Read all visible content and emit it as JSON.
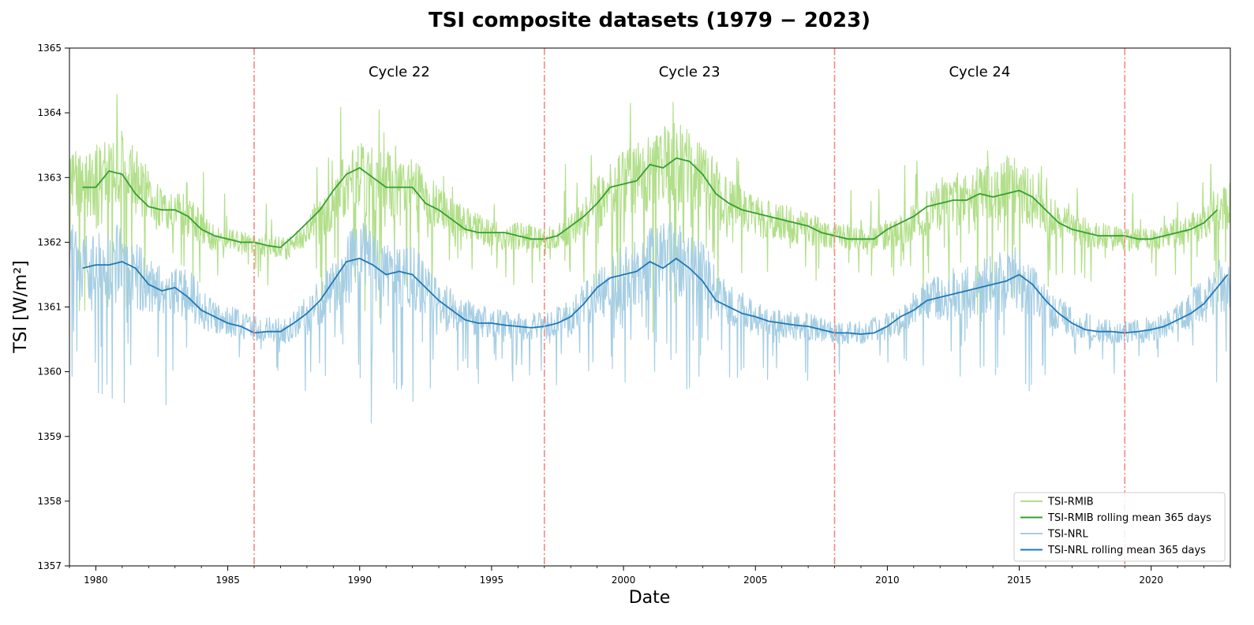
{
  "chart_data": {
    "type": "line",
    "title": "TSI composite datasets (1979 − 2023)",
    "xlabel": "Date",
    "ylabel": "TSI [W/m²]",
    "xlim": [
      1979.0,
      2023.0
    ],
    "ylim": [
      1357,
      1365
    ],
    "x_ticks": [
      "1980",
      "1985",
      "1990",
      "1995",
      "2000",
      "2005",
      "2010",
      "2015",
      "2020"
    ],
    "y_ticks": [
      "1357",
      "1358",
      "1359",
      "1360",
      "1361",
      "1362",
      "1363",
      "1364",
      "1365"
    ],
    "grid": false,
    "legend_position": "lower-right",
    "cycle_boundaries": [
      1986.0,
      1997.0,
      2008.0,
      2019.0
    ],
    "cycle_labels": [
      {
        "label": "Cycle 22",
        "x": 1991.5
      },
      {
        "label": "Cycle 23",
        "x": 2002.5
      },
      {
        "label": "Cycle 24",
        "x": 2013.5
      }
    ],
    "series": [
      {
        "name": "TSI-RMIB",
        "color": "#b2df8a",
        "kind": "daily",
        "anchors": [
          [
            1979.0,
            1362.9
          ],
          [
            1980.0,
            1362.9
          ],
          [
            1980.8,
            1363.2
          ],
          [
            1981.8,
            1362.8
          ],
          [
            1982.5,
            1362.5
          ],
          [
            1983.5,
            1362.4
          ],
          [
            1984.3,
            1362.1
          ],
          [
            1985.3,
            1362.0
          ],
          [
            1986.5,
            1361.95
          ],
          [
            1987.3,
            1361.9
          ],
          [
            1988.0,
            1362.2
          ],
          [
            1989.0,
            1362.6
          ],
          [
            1989.5,
            1362.9
          ],
          [
            1990.2,
            1363.15
          ],
          [
            1991.0,
            1362.9
          ],
          [
            1992.0,
            1362.85
          ],
          [
            1993.0,
            1362.5
          ],
          [
            1994.0,
            1362.3
          ],
          [
            1995.0,
            1362.1
          ],
          [
            1996.0,
            1362.1
          ],
          [
            1997.0,
            1362.05
          ],
          [
            1998.0,
            1362.2
          ],
          [
            1999.0,
            1362.6
          ],
          [
            2000.0,
            1362.9
          ],
          [
            2001.0,
            1363.1
          ],
          [
            2002.0,
            1363.25
          ],
          [
            2003.0,
            1363.0
          ],
          [
            2004.0,
            1362.6
          ],
          [
            2005.0,
            1362.4
          ],
          [
            2006.0,
            1362.3
          ],
          [
            2007.0,
            1362.2
          ],
          [
            2008.0,
            1362.1
          ],
          [
            2009.0,
            1362.05
          ],
          [
            2010.0,
            1362.1
          ],
          [
            2011.0,
            1362.3
          ],
          [
            2012.0,
            1362.6
          ],
          [
            2013.0,
            1362.7
          ],
          [
            2014.0,
            1362.75
          ],
          [
            2015.0,
            1362.8
          ],
          [
            2016.0,
            1362.5
          ],
          [
            2017.0,
            1362.2
          ],
          [
            2018.0,
            1362.1
          ],
          [
            2019.0,
            1362.05
          ],
          [
            2020.0,
            1362.05
          ],
          [
            2021.0,
            1362.15
          ],
          [
            2022.0,
            1362.3
          ],
          [
            2023.0,
            1362.6
          ]
        ]
      },
      {
        "name": "TSI-RMIB rolling mean 365 days",
        "color": "#33a02c",
        "kind": "mean",
        "anchors": [
          [
            1979.5,
            1362.85
          ],
          [
            1980.0,
            1362.85
          ],
          [
            1980.5,
            1363.1
          ],
          [
            1981.0,
            1363.05
          ],
          [
            1981.5,
            1362.75
          ],
          [
            1982.0,
            1362.55
          ],
          [
            1982.5,
            1362.5
          ],
          [
            1983.0,
            1362.5
          ],
          [
            1983.5,
            1362.4
          ],
          [
            1984.0,
            1362.2
          ],
          [
            1984.5,
            1362.1
          ],
          [
            1985.0,
            1362.05
          ],
          [
            1985.5,
            1362.0
          ],
          [
            1986.0,
            1362.0
          ],
          [
            1986.5,
            1361.95
          ],
          [
            1987.0,
            1361.92
          ],
          [
            1987.5,
            1362.1
          ],
          [
            1988.0,
            1362.3
          ],
          [
            1988.5,
            1362.5
          ],
          [
            1989.0,
            1362.8
          ],
          [
            1989.5,
            1363.05
          ],
          [
            1990.0,
            1363.15
          ],
          [
            1990.5,
            1363.0
          ],
          [
            1991.0,
            1362.85
          ],
          [
            1991.5,
            1362.85
          ],
          [
            1992.0,
            1362.85
          ],
          [
            1992.5,
            1362.6
          ],
          [
            1993.0,
            1362.5
          ],
          [
            1993.5,
            1362.35
          ],
          [
            1994.0,
            1362.2
          ],
          [
            1994.5,
            1362.15
          ],
          [
            1995.0,
            1362.15
          ],
          [
            1995.5,
            1362.15
          ],
          [
            1996.0,
            1362.1
          ],
          [
            1996.5,
            1362.05
          ],
          [
            1997.0,
            1362.05
          ],
          [
            1997.5,
            1362.1
          ],
          [
            1998.0,
            1362.25
          ],
          [
            1998.5,
            1362.4
          ],
          [
            1999.0,
            1362.6
          ],
          [
            1999.5,
            1362.85
          ],
          [
            2000.0,
            1362.9
          ],
          [
            2000.5,
            1362.95
          ],
          [
            2001.0,
            1363.2
          ],
          [
            2001.5,
            1363.15
          ],
          [
            2002.0,
            1363.3
          ],
          [
            2002.5,
            1363.25
          ],
          [
            2003.0,
            1363.05
          ],
          [
            2003.5,
            1362.75
          ],
          [
            2004.0,
            1362.6
          ],
          [
            2004.5,
            1362.5
          ],
          [
            2005.0,
            1362.45
          ],
          [
            2005.5,
            1362.4
          ],
          [
            2006.0,
            1362.35
          ],
          [
            2006.5,
            1362.3
          ],
          [
            2007.0,
            1362.25
          ],
          [
            2007.5,
            1362.15
          ],
          [
            2008.0,
            1362.1
          ],
          [
            2008.5,
            1362.05
          ],
          [
            2009.0,
            1362.05
          ],
          [
            2009.5,
            1362.05
          ],
          [
            2010.0,
            1362.2
          ],
          [
            2010.5,
            1362.3
          ],
          [
            2011.0,
            1362.4
          ],
          [
            2011.5,
            1362.55
          ],
          [
            2012.0,
            1362.6
          ],
          [
            2012.5,
            1362.65
          ],
          [
            2013.0,
            1362.65
          ],
          [
            2013.5,
            1362.75
          ],
          [
            2014.0,
            1362.7
          ],
          [
            2014.5,
            1362.75
          ],
          [
            2015.0,
            1362.8
          ],
          [
            2015.5,
            1362.7
          ],
          [
            2016.0,
            1362.5
          ],
          [
            2016.5,
            1362.3
          ],
          [
            2017.0,
            1362.2
          ],
          [
            2017.5,
            1362.15
          ],
          [
            2018.0,
            1362.1
          ],
          [
            2018.5,
            1362.1
          ],
          [
            2019.0,
            1362.1
          ],
          [
            2019.5,
            1362.05
          ],
          [
            2020.0,
            1362.05
          ],
          [
            2020.5,
            1362.1
          ],
          [
            2021.0,
            1362.15
          ],
          [
            2021.5,
            1362.2
          ],
          [
            2022.0,
            1362.3
          ],
          [
            2022.5,
            1362.5
          ]
        ]
      },
      {
        "name": "TSI-NRL",
        "color": "#a6cee3",
        "kind": "daily",
        "anchors": [
          [
            1979.0,
            1361.7
          ],
          [
            1980.0,
            1361.6
          ],
          [
            1980.8,
            1361.7
          ],
          [
            1981.8,
            1361.4
          ],
          [
            1982.5,
            1361.2
          ],
          [
            1983.5,
            1361.2
          ],
          [
            1984.3,
            1360.9
          ],
          [
            1985.3,
            1360.75
          ],
          [
            1986.5,
            1360.65
          ],
          [
            1987.3,
            1360.65
          ],
          [
            1988.0,
            1360.9
          ],
          [
            1989.0,
            1361.3
          ],
          [
            1989.5,
            1361.6
          ],
          [
            1990.2,
            1361.75
          ],
          [
            1991.0,
            1361.5
          ],
          [
            1992.0,
            1361.5
          ],
          [
            1993.0,
            1361.1
          ],
          [
            1994.0,
            1360.85
          ],
          [
            1995.0,
            1360.75
          ],
          [
            1996.0,
            1360.7
          ],
          [
            1997.0,
            1360.7
          ],
          [
            1998.0,
            1360.85
          ],
          [
            1999.0,
            1361.2
          ],
          [
            2000.0,
            1361.5
          ],
          [
            2001.0,
            1361.65
          ],
          [
            2002.0,
            1361.75
          ],
          [
            2003.0,
            1361.5
          ],
          [
            2004.0,
            1361.0
          ],
          [
            2005.0,
            1360.85
          ],
          [
            2006.0,
            1360.75
          ],
          [
            2007.0,
            1360.7
          ],
          [
            2008.0,
            1360.6
          ],
          [
            2009.0,
            1360.6
          ],
          [
            2010.0,
            1360.7
          ],
          [
            2011.0,
            1360.95
          ],
          [
            2012.0,
            1361.15
          ],
          [
            2013.0,
            1361.25
          ],
          [
            2014.0,
            1361.35
          ],
          [
            2015.0,
            1361.45
          ],
          [
            2016.0,
            1361.05
          ],
          [
            2017.0,
            1360.75
          ],
          [
            2018.0,
            1360.65
          ],
          [
            2019.0,
            1360.6
          ],
          [
            2020.0,
            1360.65
          ],
          [
            2021.0,
            1360.8
          ],
          [
            2022.0,
            1361.1
          ],
          [
            2023.0,
            1361.5
          ]
        ]
      },
      {
        "name": "TSI-NRL rolling mean 365 days",
        "color": "#1f78b4",
        "kind": "mean",
        "anchors": [
          [
            1979.5,
            1361.6
          ],
          [
            1980.0,
            1361.65
          ],
          [
            1980.5,
            1361.65
          ],
          [
            1981.0,
            1361.7
          ],
          [
            1981.5,
            1361.6
          ],
          [
            1982.0,
            1361.35
          ],
          [
            1982.5,
            1361.25
          ],
          [
            1983.0,
            1361.3
          ],
          [
            1983.5,
            1361.15
          ],
          [
            1984.0,
            1360.95
          ],
          [
            1984.5,
            1360.85
          ],
          [
            1985.0,
            1360.75
          ],
          [
            1985.5,
            1360.7
          ],
          [
            1986.0,
            1360.6
          ],
          [
            1986.5,
            1360.62
          ],
          [
            1987.0,
            1360.62
          ],
          [
            1987.5,
            1360.75
          ],
          [
            1988.0,
            1360.9
          ],
          [
            1988.5,
            1361.1
          ],
          [
            1989.0,
            1361.4
          ],
          [
            1989.5,
            1361.7
          ],
          [
            1990.0,
            1361.75
          ],
          [
            1990.5,
            1361.65
          ],
          [
            1991.0,
            1361.5
          ],
          [
            1991.5,
            1361.55
          ],
          [
            1992.0,
            1361.5
          ],
          [
            1992.5,
            1361.3
          ],
          [
            1993.0,
            1361.1
          ],
          [
            1993.5,
            1360.95
          ],
          [
            1994.0,
            1360.8
          ],
          [
            1994.5,
            1360.75
          ],
          [
            1995.0,
            1360.75
          ],
          [
            1995.5,
            1360.72
          ],
          [
            1996.0,
            1360.7
          ],
          [
            1996.5,
            1360.68
          ],
          [
            1997.0,
            1360.7
          ],
          [
            1997.5,
            1360.75
          ],
          [
            1998.0,
            1360.85
          ],
          [
            1998.5,
            1361.05
          ],
          [
            1999.0,
            1361.3
          ],
          [
            1999.5,
            1361.45
          ],
          [
            2000.0,
            1361.5
          ],
          [
            2000.5,
            1361.55
          ],
          [
            2001.0,
            1361.7
          ],
          [
            2001.5,
            1361.6
          ],
          [
            2002.0,
            1361.75
          ],
          [
            2002.5,
            1361.6
          ],
          [
            2003.0,
            1361.4
          ],
          [
            2003.5,
            1361.1
          ],
          [
            2004.0,
            1361.0
          ],
          [
            2004.5,
            1360.9
          ],
          [
            2005.0,
            1360.85
          ],
          [
            2005.5,
            1360.78
          ],
          [
            2006.0,
            1360.75
          ],
          [
            2006.5,
            1360.72
          ],
          [
            2007.0,
            1360.7
          ],
          [
            2007.5,
            1360.65
          ],
          [
            2008.0,
            1360.6
          ],
          [
            2008.5,
            1360.6
          ],
          [
            2009.0,
            1360.58
          ],
          [
            2009.5,
            1360.6
          ],
          [
            2010.0,
            1360.7
          ],
          [
            2010.5,
            1360.85
          ],
          [
            2011.0,
            1360.95
          ],
          [
            2011.5,
            1361.1
          ],
          [
            2012.0,
            1361.15
          ],
          [
            2012.5,
            1361.2
          ],
          [
            2013.0,
            1361.25
          ],
          [
            2013.5,
            1361.3
          ],
          [
            2014.0,
            1361.35
          ],
          [
            2014.5,
            1361.4
          ],
          [
            2015.0,
            1361.5
          ],
          [
            2015.5,
            1361.35
          ],
          [
            2016.0,
            1361.1
          ],
          [
            2016.5,
            1360.9
          ],
          [
            2017.0,
            1360.75
          ],
          [
            2017.5,
            1360.65
          ],
          [
            2018.0,
            1360.62
          ],
          [
            2018.5,
            1360.62
          ],
          [
            2019.0,
            1360.6
          ],
          [
            2019.5,
            1360.62
          ],
          [
            2020.0,
            1360.65
          ],
          [
            2020.5,
            1360.7
          ],
          [
            2021.0,
            1360.8
          ],
          [
            2021.5,
            1360.9
          ],
          [
            2022.0,
            1361.05
          ],
          [
            2022.5,
            1361.3
          ],
          [
            2022.9,
            1361.5
          ]
        ]
      }
    ]
  }
}
